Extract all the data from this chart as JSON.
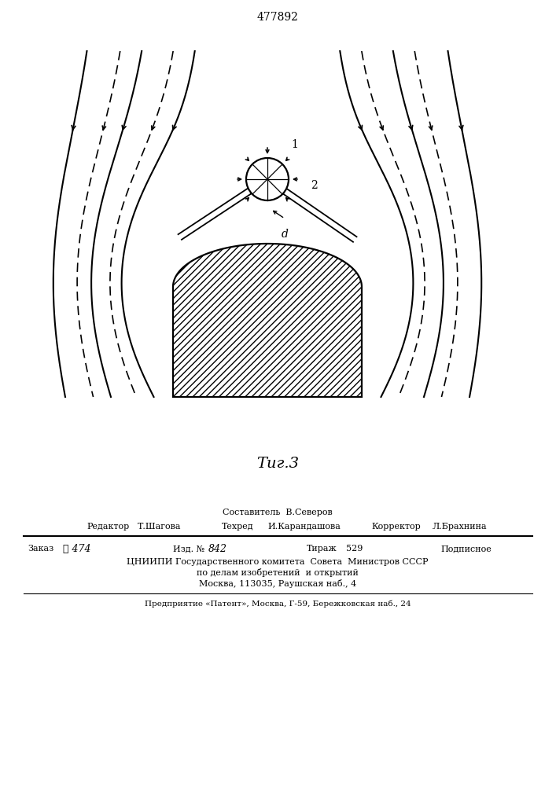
{
  "title": "477892",
  "fig_label": "Τиг.3",
  "background_color": "#ffffff",
  "line_color": "#000000",
  "label_1": "1",
  "label_2": "2",
  "label_d": "d",
  "footer_sestavitel": "Составитель  В.Северов",
  "footer_redaktor_label": "Редактор",
  "footer_redaktor_val": "Т.Шагова",
  "footer_tehred_label": "Техред",
  "footer_tehred_val": "И.Карандашова",
  "footer_korrektor_label": "Корректор",
  "footer_korrektor_val": "Л.Брахнина",
  "footer_zakaz_label": "Заказ",
  "footer_zakaz_val": "ℓ 474",
  "footer_izd_label": "Изд. №",
  "footer_izd_val": "842",
  "footer_tirazh_label": "Тираж",
  "footer_tirazh_val": "529",
  "footer_podpisnoe": "Подписное",
  "footer_cniipи": "ЦНИИПИ Государственного комитета  Совета  Министров СССР",
  "footer_po_delam": "по делам изобретений  и открытий",
  "footer_moskva": "Москва, 113035, Раушская наб., 4",
  "footer_predpriyatie": "Предприятие «Патент», Москва, Г-59, Бережковская наб., 24"
}
